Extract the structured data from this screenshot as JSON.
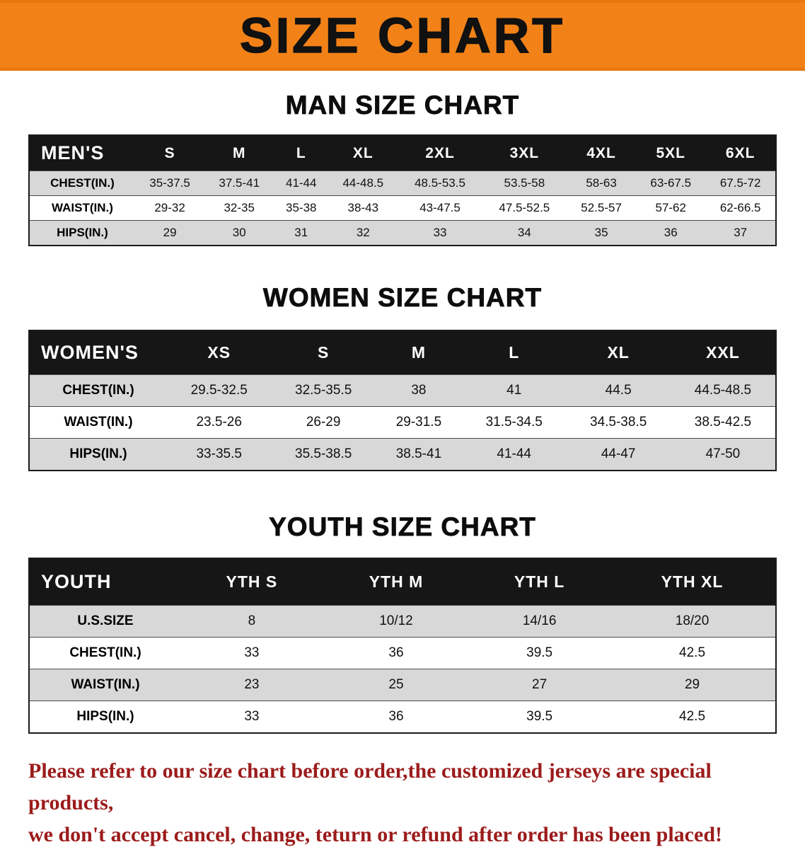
{
  "banner": {
    "title": "SIZE CHART",
    "bg_color": "#F28218",
    "text_color": "#111111"
  },
  "sections": [
    {
      "heading": "MAN SIZE CHART",
      "header": [
        "MEN'S",
        "S",
        "M",
        "L",
        "XL",
        "2XL",
        "3XL",
        "4XL",
        "5XL",
        "6XL"
      ],
      "rows": [
        [
          "CHEST(IN.)",
          "35-37.5",
          "37.5-41",
          "41-44",
          "44-48.5",
          "48.5-53.5",
          "53.5-58",
          "58-63",
          "63-67.5",
          "67.5-72"
        ],
        [
          "WAIST(IN.)",
          "29-32",
          "32-35",
          "35-38",
          "38-43",
          "43-47.5",
          "47.5-52.5",
          "52.5-57",
          "57-62",
          "62-66.5"
        ],
        [
          "HIPS(IN.)",
          "29",
          "30",
          "31",
          "32",
          "33",
          "34",
          "35",
          "36",
          "37"
        ]
      ]
    },
    {
      "heading": "WOMEN SIZE CHART",
      "header": [
        "WOMEN'S",
        "XS",
        "S",
        "M",
        "L",
        "XL",
        "XXL"
      ],
      "rows": [
        [
          "CHEST(IN.)",
          "29.5-32.5",
          "32.5-35.5",
          "38",
          "41",
          "44.5",
          "44.5-48.5"
        ],
        [
          "WAIST(IN.)",
          "23.5-26",
          "26-29",
          "29-31.5",
          "31.5-34.5",
          "34.5-38.5",
          "38.5-42.5"
        ],
        [
          "HIPS(IN.)",
          "33-35.5",
          "35.5-38.5",
          "38.5-41",
          "41-44",
          "44-47",
          "47-50"
        ]
      ]
    },
    {
      "heading": "YOUTH SIZE CHART",
      "header": [
        "YOUTH",
        "YTH S",
        "YTH M",
        "YTH L",
        "YTH XL"
      ],
      "rows": [
        [
          "U.S.SIZE",
          "8",
          "10/12",
          "14/16",
          "18/20"
        ],
        [
          "CHEST(IN.)",
          "33",
          "36",
          "39.5",
          "42.5"
        ],
        [
          "WAIST(IN.)",
          "23",
          "25",
          "27",
          "29"
        ],
        [
          "HIPS(IN.)",
          "33",
          "36",
          "39.5",
          "42.5"
        ]
      ]
    }
  ],
  "footer": {
    "lines": [
      "Please refer to our size chart before order,the customized jerseys are special products,",
      "we don't accept cancel, change, teturn or refund after order has been placed!"
    ],
    "text_color": "#9C1B1B"
  },
  "colors": {
    "table_header_bg": "#161616",
    "table_header_text": "#FFFFFF",
    "row_shade": "#D8D8D8"
  }
}
